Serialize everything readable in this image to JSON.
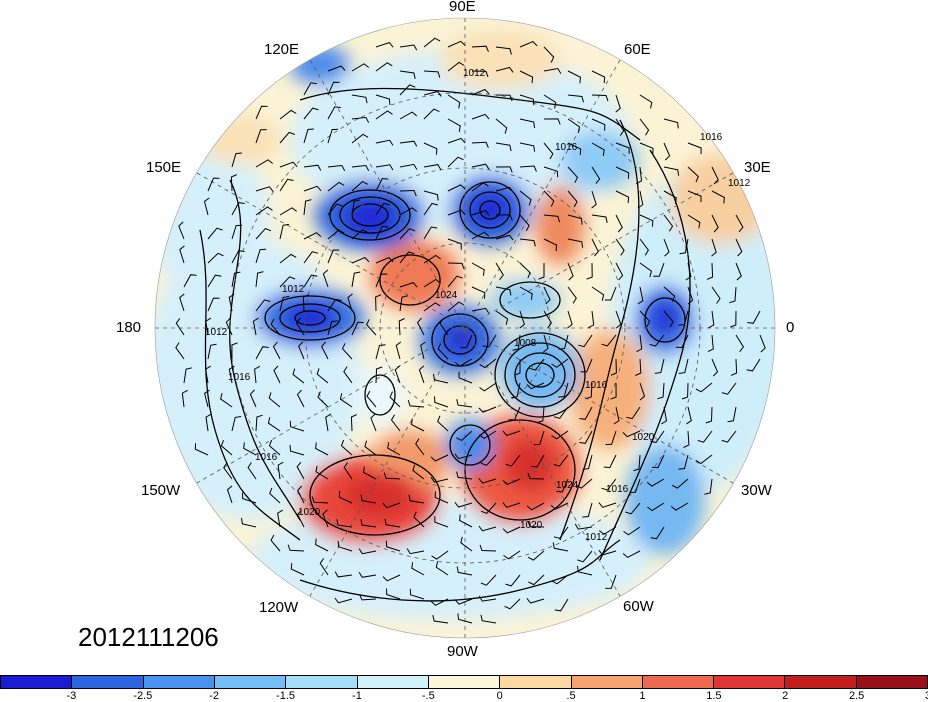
{
  "map": {
    "valid_time": "2012111206",
    "longitude_labels": {
      "lon_90e": "90E",
      "lon_60e": "60E",
      "lon_30e": "30E",
      "lon_0": "0",
      "lon_30w": "30W",
      "lon_60w": "60W",
      "lon_90w": "90W",
      "lon_120w": "120W",
      "lon_150w": "150W",
      "lon_180": "180",
      "lon_150e": "150E",
      "lon_120e": "120E"
    },
    "contour_labels": [
      "1012",
      "1012",
      "1016",
      "1012",
      "1016",
      "1016",
      "1016",
      "1012",
      "1008",
      "1024",
      "1016",
      "1020",
      "1024",
      "1020",
      "1016",
      "1020",
      "1012"
    ]
  },
  "colorbar": {
    "colors": [
      "#1b1bd4",
      "#2d64e2",
      "#4a92f0",
      "#74bdf7",
      "#a4def9",
      "#d2f2fb",
      "#fbf6d9",
      "#fbd9a0",
      "#f6a36f",
      "#ee6a4f",
      "#e13434",
      "#c41d1d",
      "#98111a"
    ],
    "ticks": [
      "-3",
      "-2.5",
      "-2",
      "-1.5",
      "-1",
      "-.5",
      "0",
      ".5",
      "1",
      "1.5",
      "2",
      "2.5",
      "3"
    ]
  }
}
